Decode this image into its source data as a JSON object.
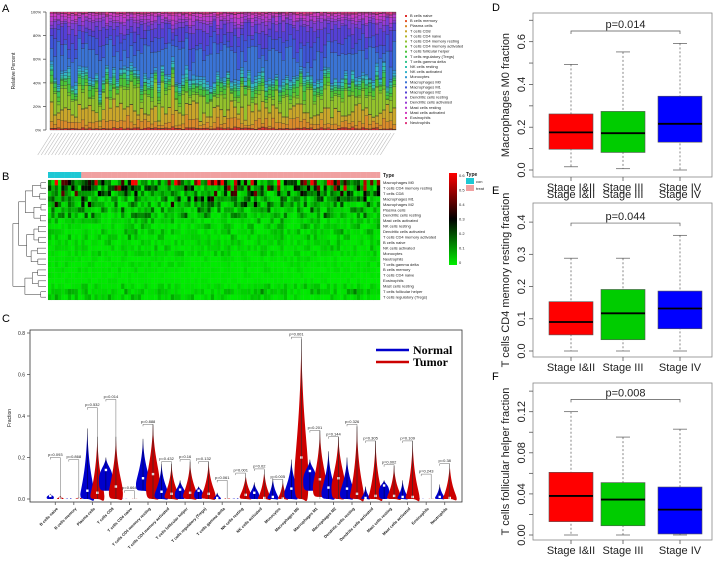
{
  "panels": {
    "a": "A",
    "b": "B",
    "c": "C",
    "d": "D",
    "e": "E",
    "f": "F"
  },
  "chart_data": [
    {
      "id": "A",
      "type": "bar",
      "stacked": true,
      "ylabel": "Relative Percent",
      "yticks": [
        "0%",
        "20%",
        "40%",
        "60%",
        "80%",
        "100%"
      ],
      "n_samples": 100,
      "legend": [
        "B cells naive",
        "B cells memory",
        "Plasma cells",
        "T cells CD8",
        "T cells CD4 naive",
        "T cells CD4 memory resting",
        "T cells CD4 memory activated",
        "T cells follicular helper",
        "T cells regulatory (Tregs)",
        "T cells gamma delta",
        "NK cells resting",
        "NK cells activated",
        "Monocytes",
        "Macrophages M0",
        "Macrophages M1",
        "Macrophages M2",
        "Dendritic cells resting",
        "Dendritic cells activated",
        "Mast cells resting",
        "Mast cells activated",
        "Eosinophils",
        "Neutrophils"
      ],
      "colors": [
        "#e0302f",
        "#e2572a",
        "#d98a2a",
        "#c9a62a",
        "#b2b82a",
        "#93c22c",
        "#6fc42e",
        "#4cc437",
        "#38c45a",
        "#33c48a",
        "#33c2b2",
        "#33b4c9",
        "#3398d2",
        "#3a74d6",
        "#3f55d8",
        "#5440d6",
        "#7a3ed6",
        "#9a3cd4",
        "#b83ccf",
        "#d03cc2",
        "#dc3ca6",
        "#e03a80"
      ],
      "mean_fractions": [
        0.01,
        0.005,
        0.05,
        0.1,
        0.005,
        0.13,
        0.02,
        0.04,
        0.03,
        0.01,
        0.02,
        0.02,
        0.02,
        0.2,
        0.1,
        0.1,
        0.05,
        0.02,
        0.03,
        0.02,
        0.005,
        0.01
      ]
    },
    {
      "id": "B",
      "type": "heatmap",
      "rows": [
        "Macrophages M0",
        "T cells CD4 memory resting",
        "T cells CD8",
        "Macrophages M1",
        "Macrophages M2",
        "Plasma cells",
        "Dendritic cells resting",
        "Mast cells activated",
        "NK cells resting",
        "Dendritic cells activated",
        "T cells CD4 memory activated",
        "B cells naive",
        "NK cells activated",
        "Monocytes",
        "Neutrophils",
        "T cells gamma delta",
        "B cells memory",
        "T cells CD4 naive",
        "Eosinophils",
        "Mast cells resting",
        "T cells follicular helper",
        "T cells regulatory (Tregs)"
      ],
      "row_means": [
        0.25,
        0.15,
        0.12,
        0.11,
        0.1,
        0.06,
        0.06,
        0.03,
        0.03,
        0.03,
        0.03,
        0.02,
        0.02,
        0.02,
        0.01,
        0.01,
        0.01,
        0.005,
        0.005,
        0.02,
        0.04,
        0.03
      ],
      "annotation_title": "Type",
      "groups": [
        {
          "label": "con",
          "color": "#1ec8d4",
          "count": 10
        },
        {
          "label": "treat",
          "color": "#f0a0a0",
          "count": 90
        }
      ],
      "colorbar_ticks": [
        "0.6",
        "0.5",
        "0.4",
        "0.3",
        "0.2",
        "0.1",
        "0"
      ],
      "color_scale": [
        "#00ee00",
        "#000000",
        "#ff0000"
      ],
      "range": [
        0,
        0.6
      ]
    },
    {
      "id": "C",
      "type": "violin",
      "ylabel": "Fraction",
      "ylim": [
        0,
        0.8
      ],
      "yticks": [
        "0.0",
        "0.2",
        "0.4",
        "0.6",
        "0.8"
      ],
      "legend": [
        {
          "label": "Normal",
          "color": "#0000cc"
        },
        {
          "label": "Tumor",
          "color": "#cc0000"
        }
      ],
      "categories": [
        "B cells naive",
        "B cells memory",
        "Plasma cells",
        "T cells CD8",
        "T cells CD4 naive",
        "T cells CD4 memory resting",
        "T cells CD4 memory activated",
        "T cells follicular helper",
        "T cells regulatory (Tregs)",
        "T cells gamma delta",
        "NK cells resting",
        "NK cells activated",
        "Monocytes",
        "Macrophages M0",
        "Macrophages M1",
        "Macrophages M2",
        "Dendritic cells resting",
        "Dendritic cells activated",
        "Mast cells resting",
        "Mast cells activated",
        "Eosinophils",
        "Neutrophils"
      ],
      "p_values": [
        "p=0.093",
        "p=0.868",
        "p=0.532",
        "p=0.014",
        "p=0.664",
        "p=0.888",
        "p=0.432",
        "p=0.16",
        "p=0.132",
        "p=0.061",
        "p=0.001",
        "p=0.02",
        "p=0.005",
        "p=0.001",
        "p=0.201",
        "p=0.144",
        "p=0.326",
        "p=0.305",
        "p=0.002",
        "p=0.109",
        "p=0.243",
        "p=0.38"
      ],
      "bracket_top": [
        0.2,
        0.19,
        0.44,
        0.48,
        0.04,
        0.36,
        0.18,
        0.19,
        0.18,
        0.09,
        0.125,
        0.145,
        0.095,
        0.78,
        0.33,
        0.3,
        0.36,
        0.28,
        0.165,
        0.28,
        0.12,
        0.17
      ],
      "normal": {
        "min": [
          0,
          0,
          0,
          0.04,
          0,
          0.04,
          0,
          0,
          0,
          0,
          0,
          0,
          0,
          0,
          0.04,
          0,
          0,
          0,
          0,
          0,
          0,
          0
        ],
        "median": [
          0.015,
          0.002,
          0.04,
          0.14,
          0,
          0.1,
          0.035,
          0.045,
          0.04,
          0.005,
          0.002,
          0.03,
          0.01,
          0.05,
          0.135,
          0.055,
          0.05,
          0.005,
          0.065,
          0.01,
          0,
          0.01
        ],
        "max": [
          0.025,
          0.005,
          0.34,
          0.2,
          0.003,
          0.29,
          0.17,
          0.09,
          0.06,
          0.03,
          0.005,
          0.08,
          0.1,
          0.19,
          0.19,
          0.23,
          0.2,
          0.06,
          0.09,
          0.09,
          0.003,
          0.07
        ]
      },
      "tumor": {
        "min": [
          0,
          0,
          0,
          0,
          0,
          0,
          0,
          0,
          0,
          0,
          0,
          0,
          0,
          0,
          0.01,
          0,
          0,
          0,
          0,
          0,
          0,
          0
        ],
        "median": [
          0.003,
          0.002,
          0.03,
          0.06,
          0,
          0.12,
          0.025,
          0.03,
          0.025,
          0.002,
          0.02,
          0.005,
          0.002,
          0.2,
          0.095,
          0.1,
          0.025,
          0.015,
          0.015,
          0.01,
          0,
          0.005
        ],
        "max": [
          0.015,
          0.01,
          0.3,
          0.3,
          0.003,
          0.36,
          0.17,
          0.18,
          0.18,
          0.005,
          0.12,
          0.14,
          0.09,
          0.77,
          0.33,
          0.3,
          0.35,
          0.28,
          0.16,
          0.28,
          0.003,
          0.17
        ]
      }
    },
    {
      "id": "D",
      "type": "box",
      "ylabel": "Macrophages M0 fraction",
      "categories": [
        "Stage I&II",
        "Stage III",
        "Stage IV"
      ],
      "colors": [
        "#ff0000",
        "#00cc00",
        "#0000ff"
      ],
      "p_value": "p=0.014",
      "ylim": [
        0,
        0.72
      ],
      "tick_step": 0.1,
      "yticks": [
        "0.0",
        "0.2",
        "0.4",
        "0.6"
      ],
      "boxes": [
        {
          "lo": 0.015,
          "q1": 0.097,
          "median": 0.176,
          "q3": 0.262,
          "hi": 0.494
        },
        {
          "lo": 0.006,
          "q1": 0.082,
          "median": 0.172,
          "q3": 0.274,
          "hi": 0.552
        },
        {
          "lo": 0.0,
          "q1": 0.13,
          "median": 0.216,
          "q3": 0.345,
          "hi": 0.592
        }
      ],
      "bracket": 0.65
    },
    {
      "id": "E",
      "type": "box",
      "ylabel": "T cells CD4 memory resting fraction",
      "categories": [
        "Stage I&II",
        "Stage III",
        "Stage IV"
      ],
      "colors": [
        "#ff0000",
        "#00cc00",
        "#0000ff"
      ],
      "p_value": "p=0.044",
      "ylim": [
        0,
        0.45
      ],
      "tick_step": 0.1,
      "yticks": [
        "0.0",
        "0.1",
        "0.2",
        "0.3",
        "0.4"
      ],
      "boxes": [
        {
          "lo": 0,
          "q1": 0.05,
          "median": 0.09,
          "q3": 0.153,
          "hi": 0.288
        },
        {
          "lo": 0,
          "q1": 0.035,
          "median": 0.117,
          "q3": 0.191,
          "hi": 0.288
        },
        {
          "lo": 0,
          "q1": 0.069,
          "median": 0.132,
          "q3": 0.186,
          "hi": 0.359
        }
      ],
      "bracket": 0.397
    },
    {
      "id": "F",
      "type": "box",
      "ylabel": "T cells follicular helper fraction",
      "categories": [
        "Stage I&II",
        "Stage III",
        "Stage IV"
      ],
      "colors": [
        "#ff0000",
        "#00cc00",
        "#0000ff"
      ],
      "p_value": "p=0.008",
      "ylim": [
        0,
        0.145
      ],
      "tick_step": 0.02,
      "yticks": [
        "0.00",
        "0.04",
        "0.08",
        "0.12"
      ],
      "boxes": [
        {
          "lo": 0,
          "q1": 0.013,
          "median": 0.038,
          "q3": 0.061,
          "hi": 0.12
        },
        {
          "lo": 0,
          "q1": 0.009,
          "median": 0.0345,
          "q3": 0.051,
          "hi": 0.0953
        },
        {
          "lo": 0,
          "q1": 0.001,
          "median": 0.0247,
          "q3": 0.0467,
          "hi": 0.103
        }
      ],
      "bracket": 0.132
    }
  ]
}
